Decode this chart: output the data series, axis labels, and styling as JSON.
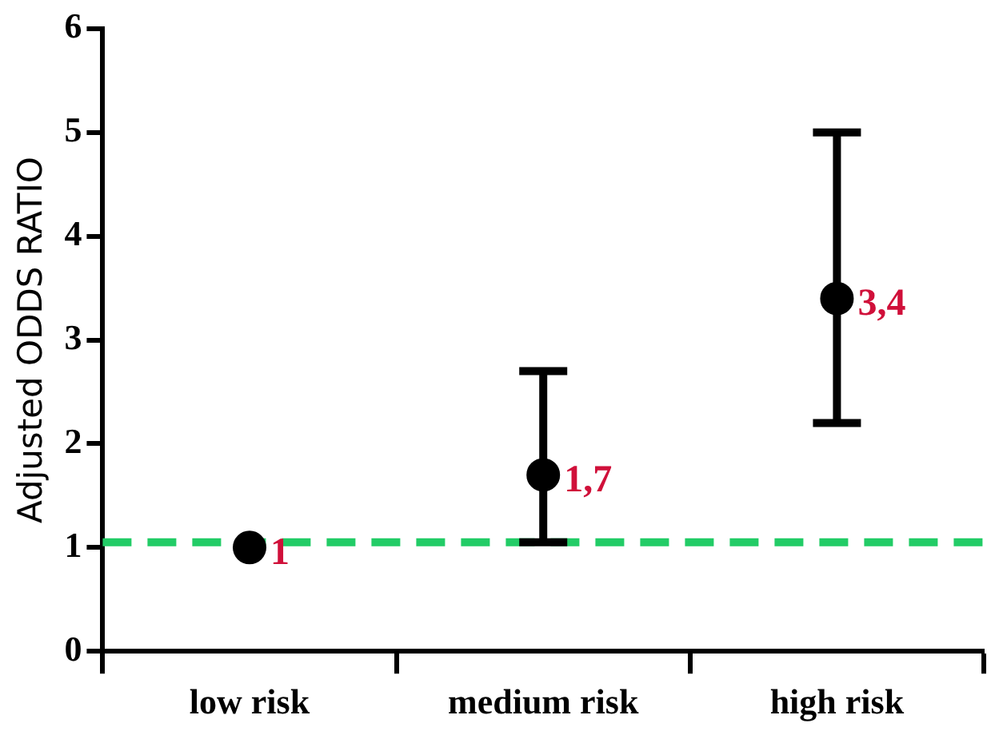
{
  "chart_data": {
    "type": "scatter",
    "ylabel": "Adjusted ODDS RATIO",
    "categories": [
      "low risk",
      "medium risk",
      "high risk"
    ],
    "series": [
      {
        "color": "#000000",
        "values": [
          1,
          1.7,
          3.4
        ],
        "errors": [
          null,
          [
            1.05,
            2.7
          ],
          [
            2.2,
            5.0
          ]
        ],
        "value_labels": [
          "1",
          "1,7",
          "3,4"
        ]
      }
    ],
    "ylim": [
      0,
      6
    ],
    "yticks": [
      0,
      1,
      2,
      3,
      4,
      5,
      6
    ],
    "grid": false,
    "legend": false,
    "marker": "circle",
    "ref_lines": [
      {
        "axis": "y",
        "value": 1.05,
        "color": "#22cc66",
        "line_style": "dashed"
      }
    ]
  }
}
